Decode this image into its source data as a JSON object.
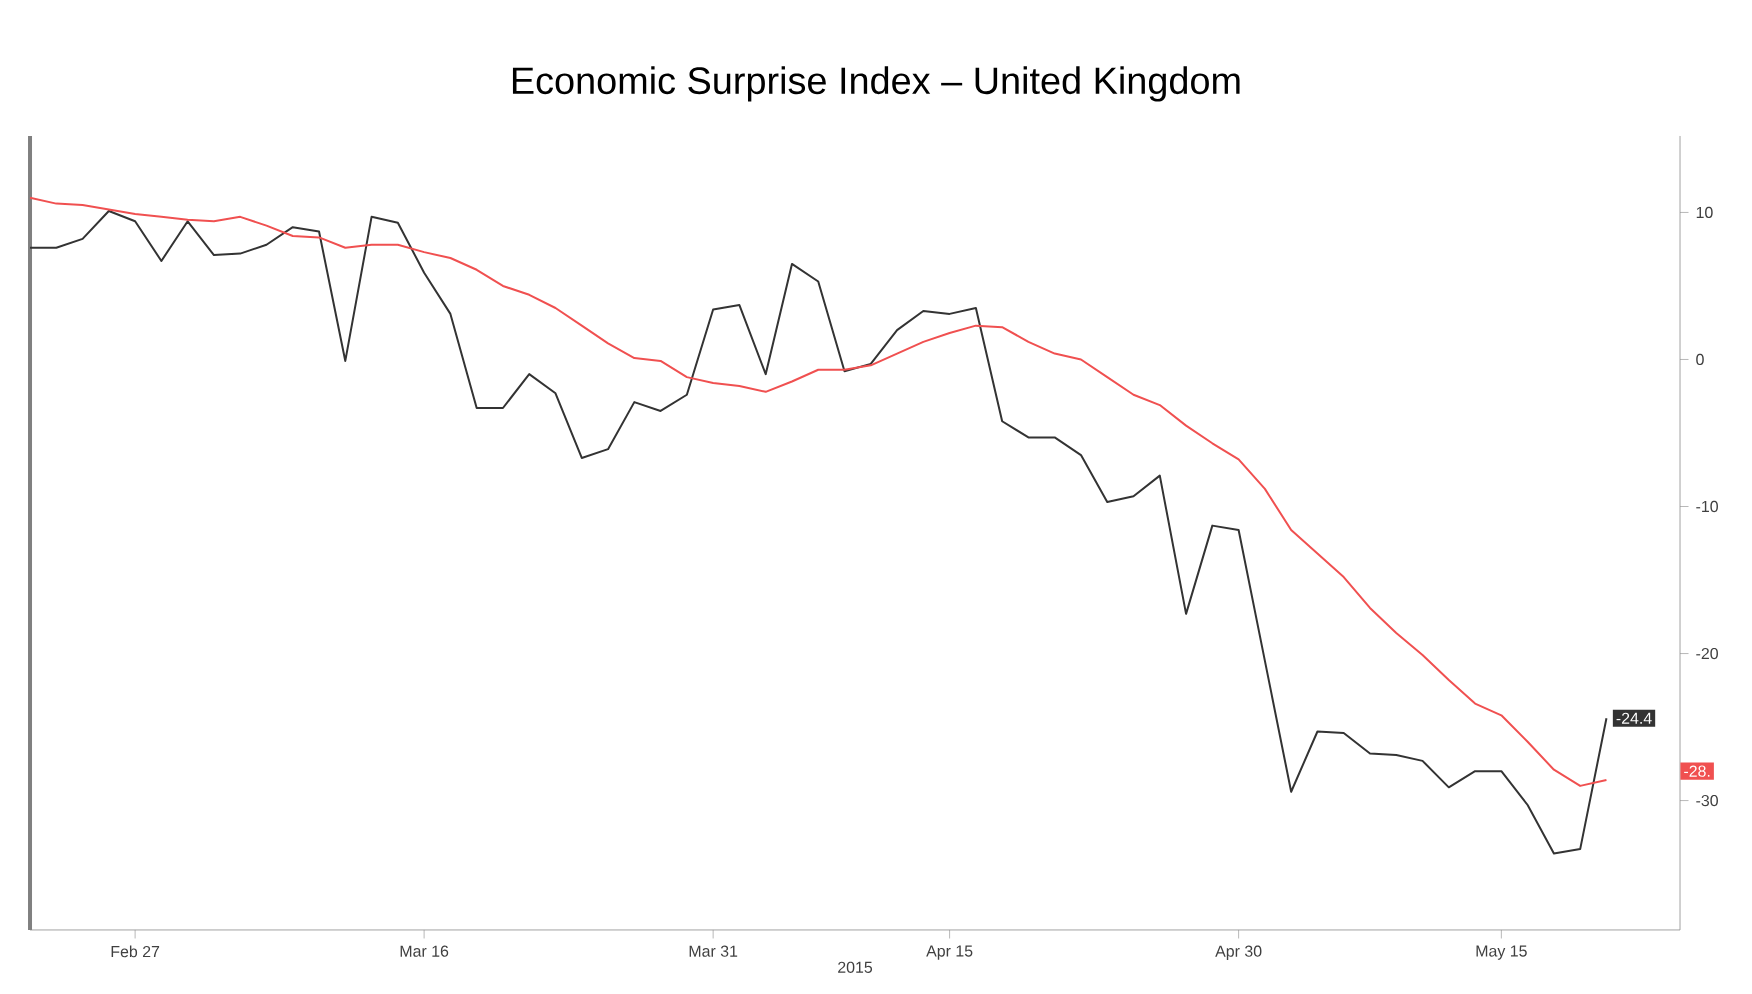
{
  "chart_data": {
    "type": "line",
    "title": "Economic Surprise Index – United Kingdom",
    "xlabel": "2015",
    "categories": [
      null,
      null,
      null,
      null,
      "Feb 27",
      null,
      null,
      null,
      null,
      null,
      null,
      null,
      null,
      null,
      null,
      "Mar 16",
      null,
      null,
      null,
      null,
      null,
      null,
      null,
      null,
      null,
      null,
      "Mar 31",
      null,
      null,
      null,
      null,
      null,
      null,
      null,
      null,
      "Apr 15",
      null,
      null,
      null,
      null,
      null,
      null,
      null,
      null,
      null,
      null,
      "Apr 30",
      null,
      null,
      null,
      null,
      null,
      null,
      null,
      null,
      null,
      "May 15",
      null,
      null,
      null,
      null
    ],
    "ylim": [
      -38.8,
      15.2
    ],
    "yticks": [
      -30,
      -20,
      -10,
      0,
      10
    ],
    "marker": "none",
    "line_style": "solid",
    "annotations": [
      "-28."
    ],
    "series": [
      {
        "color": "#333333",
        "values": [
          7.6,
          7.6,
          8.2,
          10.1,
          9.4,
          6.7,
          9.4,
          7.1,
          7.2,
          7.8,
          9.0,
          8.7,
          -0.1,
          9.7,
          9.3,
          5.9,
          3.1,
          -3.3,
          -3.3,
          -1.0,
          -2.3,
          -6.7,
          -6.1,
          -2.9,
          -3.5,
          -2.4,
          3.4,
          3.7,
          -1.0,
          6.5,
          5.3,
          -0.8,
          -0.3,
          2.0,
          3.3,
          3.1,
          3.5,
          -4.2,
          -5.3,
          -5.3,
          -6.5,
          -9.7,
          -9.3,
          -7.9,
          -17.3,
          -11.3,
          -11.6,
          -20.5,
          -29.4,
          -25.3,
          -25.4,
          -26.8,
          -26.9,
          -27.3,
          -29.1,
          -28.0,
          -28.0,
          -30.3,
          -33.6,
          -33.3,
          -24.4
        ],
        "value_labels": [
          null,
          null,
          null,
          null,
          null,
          null,
          null,
          null,
          null,
          null,
          null,
          null,
          null,
          null,
          null,
          null,
          null,
          null,
          null,
          null,
          null,
          null,
          null,
          null,
          null,
          null,
          null,
          null,
          null,
          null,
          null,
          null,
          null,
          null,
          null,
          null,
          null,
          null,
          null,
          null,
          null,
          null,
          null,
          null,
          null,
          null,
          null,
          null,
          null,
          null,
          null,
          null,
          null,
          null,
          null,
          null,
          null,
          null,
          null,
          null,
          "-24.4"
        ]
      },
      {
        "color": "#f05050",
        "values": [
          11.0,
          10.6,
          10.5,
          10.2,
          9.9,
          9.7,
          9.5,
          9.4,
          9.7,
          9.1,
          8.4,
          8.3,
          7.6,
          7.8,
          7.8,
          7.3,
          6.9,
          6.1,
          5.0,
          4.4,
          3.5,
          2.3,
          1.1,
          0.1,
          -0.1,
          -1.2,
          -1.6,
          -1.8,
          -2.2,
          -1.5,
          -0.7,
          -0.7,
          -0.4,
          0.4,
          1.2,
          1.8,
          2.3,
          2.2,
          1.2,
          0.4,
          0.0,
          -1.2,
          -2.4,
          -3.1,
          -4.5,
          -5.7,
          -6.8,
          -8.8,
          -11.6,
          -13.2,
          -14.8,
          -16.9,
          -18.6,
          -20.1,
          -21.8,
          -23.4,
          -24.2,
          -26.0,
          -27.9,
          -29.0,
          -28.6
        ]
      }
    ]
  }
}
